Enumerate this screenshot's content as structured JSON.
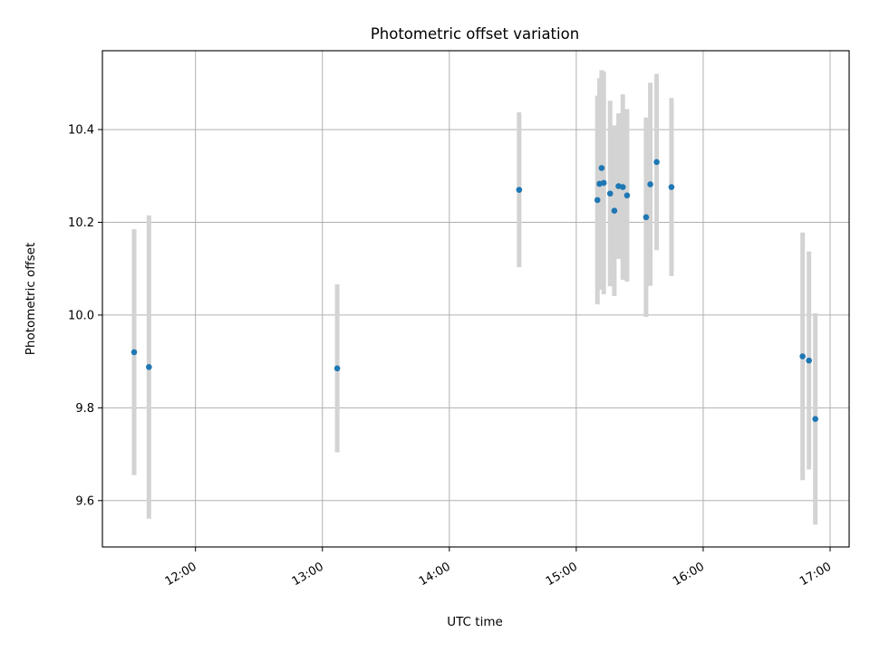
{
  "chart_data": {
    "type": "scatter",
    "title": "Photometric offset variation",
    "xlabel": "UTC time",
    "ylabel": "Photometric offset",
    "x_axis_kind": "time",
    "xlim": [
      "11:16",
      "17:09"
    ],
    "ylim": [
      9.5,
      10.57
    ],
    "x_ticks": [
      "12:00",
      "13:00",
      "14:00",
      "15:00",
      "16:00",
      "17:00"
    ],
    "y_ticks": [
      "9.6",
      "9.8",
      "10.0",
      "10.2",
      "10.4"
    ],
    "grid": true,
    "legend": "none",
    "error_bars": true,
    "colors": {
      "points": "#1f77b4",
      "error_bars": "#d3d3d3",
      "grid": "#b0b0b0"
    },
    "points": [
      {
        "x": "11:31",
        "y": 9.92,
        "err": 0.265
      },
      {
        "x": "11:38",
        "y": 9.888,
        "err": 0.327
      },
      {
        "x": "13:07",
        "y": 9.885,
        "err": 0.181
      },
      {
        "x": "14:33",
        "y": 10.27,
        "err": 0.167
      },
      {
        "x": "15:10",
        "y": 10.248,
        "err": 0.225
      },
      {
        "x": "15:11",
        "y": 10.283,
        "err": 0.228
      },
      {
        "x": "15:12",
        "y": 10.317,
        "err": 0.211
      },
      {
        "x": "15:13",
        "y": 10.285,
        "err": 0.24
      },
      {
        "x": "15:16",
        "y": 10.262,
        "err": 0.2
      },
      {
        "x": "15:18",
        "y": 10.225,
        "err": 0.184
      },
      {
        "x": "15:20",
        "y": 10.278,
        "err": 0.157
      },
      {
        "x": "15:22",
        "y": 10.276,
        "err": 0.2
      },
      {
        "x": "15:24",
        "y": 10.258,
        "err": 0.186
      },
      {
        "x": "15:33",
        "y": 10.211,
        "err": 0.215
      },
      {
        "x": "15:35",
        "y": 10.282,
        "err": 0.219
      },
      {
        "x": "15:38",
        "y": 10.33,
        "err": 0.19
      },
      {
        "x": "15:45",
        "y": 10.276,
        "err": 0.192
      },
      {
        "x": "16:47",
        "y": 9.911,
        "err": 0.267
      },
      {
        "x": "16:50",
        "y": 9.902,
        "err": 0.235
      },
      {
        "x": "16:53",
        "y": 9.776,
        "err": 0.228
      }
    ]
  }
}
